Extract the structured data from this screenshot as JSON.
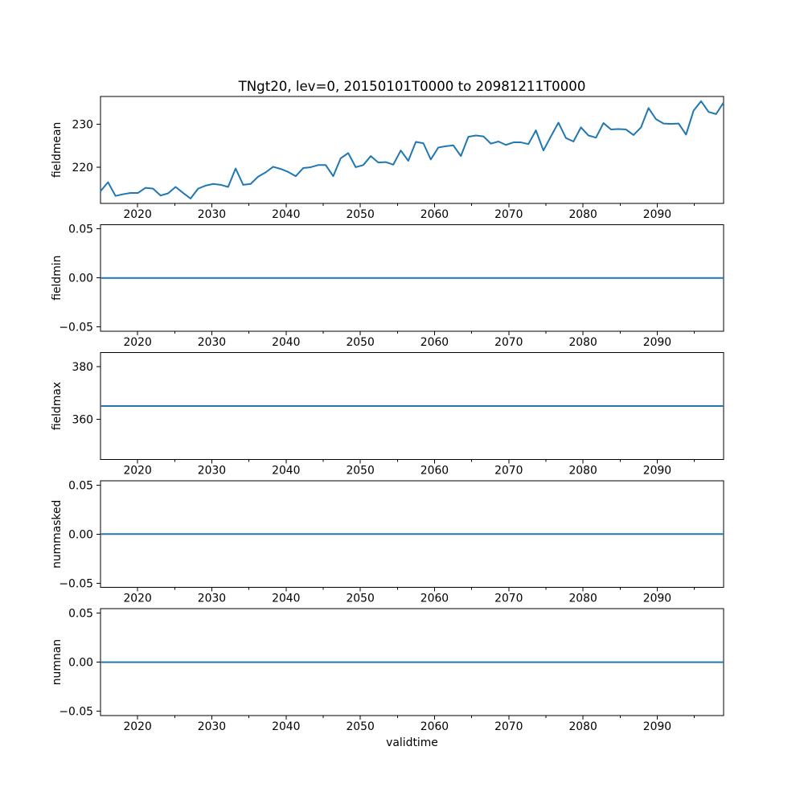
{
  "figure": {
    "title": "TNgt20, lev=0, 20150101T0000 to 20981211T0000",
    "xlabel": "validtime",
    "background_color": "#ffffff",
    "line_color": "#1f77b4",
    "spine_color": "#000000"
  },
  "axis": {
    "xlim": [
      2015.0,
      2098.94
    ],
    "xticks": [
      2020,
      2030,
      2040,
      2050,
      2060,
      2070,
      2080,
      2090
    ],
    "xtick_labels": [
      "2020",
      "2030",
      "2040",
      "2050",
      "2060",
      "2070",
      "2080",
      "2090"
    ],
    "minor_xticks": [
      2025,
      2035,
      2045,
      2055,
      2065,
      2075,
      2085,
      2095
    ]
  },
  "chart_data": [
    {
      "type": "line",
      "name": "fieldmean",
      "ylabel": "fieldmean",
      "ylim": [
        211.6,
        236.5
      ],
      "yticks": [
        {
          "v": 220,
          "label": "220"
        },
        {
          "v": 230,
          "label": "230"
        }
      ],
      "x_start": 2015,
      "x_end": 2098,
      "values": [
        214.4,
        216.5,
        213.3,
        213.7,
        214.0,
        214.0,
        215.2,
        215.0,
        213.4,
        213.9,
        215.4,
        214.0,
        212.7,
        215.0,
        215.7,
        216.1,
        215.9,
        215.4,
        219.7,
        215.9,
        216.1,
        217.8,
        218.8,
        220.1,
        219.6,
        218.9,
        217.9,
        219.8,
        220.0,
        220.5,
        220.5,
        217.9,
        222.1,
        223.3,
        220.0,
        220.5,
        222.6,
        221.1,
        221.2,
        220.6,
        223.9,
        221.5,
        225.9,
        225.6,
        221.8,
        224.6,
        224.9,
        225.1,
        222.6,
        227.1,
        227.4,
        227.2,
        225.5,
        226.0,
        225.2,
        225.8,
        225.8,
        225.4,
        228.6,
        223.9,
        227.2,
        230.4,
        226.8,
        226.0,
        229.3,
        227.4,
        226.9,
        230.3,
        228.8,
        228.9,
        228.8,
        227.5,
        229.3,
        233.8,
        231.2,
        230.2,
        230.1,
        230.2,
        227.6,
        233.2,
        235.4,
        232.9,
        232.4,
        235.1
      ]
    },
    {
      "type": "line",
      "name": "fieldmin",
      "ylabel": "fieldmin",
      "ylim": [
        -0.0544,
        0.0544
      ],
      "yticks": [
        {
          "v": -0.05,
          "label": "−0.05"
        },
        {
          "v": 0.0,
          "label": "0.00"
        },
        {
          "v": 0.05,
          "label": "0.05"
        }
      ],
      "constant": 0.0
    },
    {
      "type": "line",
      "name": "fieldmax",
      "ylabel": "fieldmax",
      "ylim": [
        344.67,
        385.33
      ],
      "yticks": [
        {
          "v": 360,
          "label": "360"
        },
        {
          "v": 380,
          "label": "380"
        }
      ],
      "constant": 365.0
    },
    {
      "type": "line",
      "name": "nummasked",
      "ylabel": "nummasked",
      "ylim": [
        -0.0544,
        0.0544
      ],
      "yticks": [
        {
          "v": -0.05,
          "label": "−0.05"
        },
        {
          "v": 0.0,
          "label": "0.00"
        },
        {
          "v": 0.05,
          "label": "0.05"
        }
      ],
      "constant": 0.0
    },
    {
      "type": "line",
      "name": "numnan",
      "ylabel": "numnan",
      "ylim": [
        -0.0544,
        0.0544
      ],
      "yticks": [
        {
          "v": -0.05,
          "label": "−0.05"
        },
        {
          "v": 0.0,
          "label": "0.00"
        },
        {
          "v": 0.05,
          "label": "0.05"
        }
      ],
      "constant": 0.0
    }
  ]
}
